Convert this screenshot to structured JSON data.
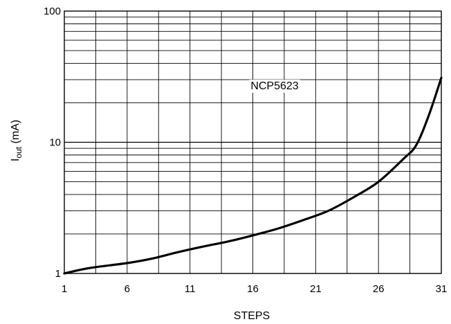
{
  "chart_data": {
    "type": "line",
    "title": "",
    "xlabel": "STEPS",
    "ylabel_main": "I",
    "ylabel_sub": "out",
    "ylabel_unit": " (mA)",
    "xlim": [
      1,
      31
    ],
    "ylim": [
      1,
      100
    ],
    "yscale": "log",
    "grid": true,
    "x_ticks": [
      1,
      6,
      11,
      16,
      21,
      26,
      31
    ],
    "x_tick_labels": [
      "1",
      "6",
      "11",
      "16",
      "21",
      "26",
      "31"
    ],
    "y_ticks": [
      1,
      10,
      100
    ],
    "y_tick_labels": [
      "1",
      "10",
      "100"
    ],
    "annotation": "NCP5623",
    "series": [
      {
        "name": "NCP5623",
        "x": [
          1,
          3,
          6,
          8,
          10,
          12,
          14,
          16,
          18,
          20,
          22,
          24,
          26,
          28,
          29,
          30,
          31
        ],
        "y": [
          1.0,
          1.1,
          1.2,
          1.3,
          1.45,
          1.6,
          1.75,
          1.95,
          2.2,
          2.55,
          3.0,
          3.8,
          5.0,
          7.5,
          9.5,
          16,
          31
        ]
      }
    ],
    "colors": {
      "line": "#000000",
      "grid": "#000000",
      "background": "#ffffff"
    }
  }
}
